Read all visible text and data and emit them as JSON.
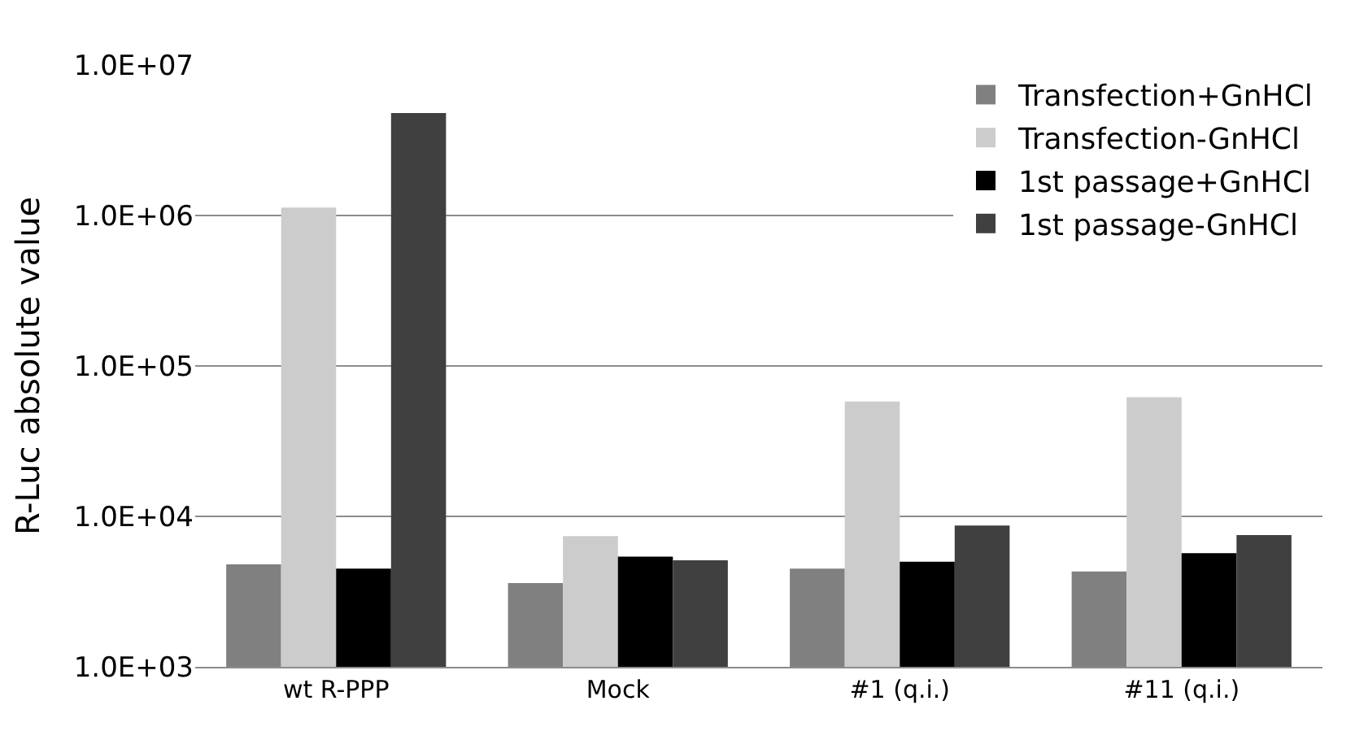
{
  "chart_data": {
    "type": "bar",
    "ylabel": "R-Luc absolute value",
    "categories": [
      "wt R-PPP",
      "Mock",
      "#1 (q.i.)",
      "#11 (q.i.)"
    ],
    "series": [
      {
        "name": "Transfection+GnHCl",
        "color": "#808080",
        "values": [
          4800,
          3600,
          4500,
          4300
        ]
      },
      {
        "name": "Transfection-GnHCl",
        "color": "#cccccc",
        "values": [
          1130000,
          7400,
          58000,
          62000
        ]
      },
      {
        "name": "1st passage+GnHCl",
        "color": "#000000",
        "values": [
          4500,
          5400,
          5000,
          5700
        ]
      },
      {
        "name": "1st passage-GnHCl",
        "color": "#404040",
        "values": [
          4800000,
          5100,
          8700,
          7500
        ]
      }
    ],
    "log": true,
    "ylim": [
      1000,
      10000000
    ],
    "yticks": [
      {
        "value": 1000,
        "label": "1.0E+03"
      },
      {
        "value": 10000,
        "label": "1.0E+04"
      },
      {
        "value": 100000,
        "label": "1.0E+05"
      },
      {
        "value": 1000000,
        "label": "1.0E+06"
      },
      {
        "value": 10000000,
        "label": "1.0E+07"
      }
    ],
    "grid": "y",
    "legend": "top right"
  }
}
